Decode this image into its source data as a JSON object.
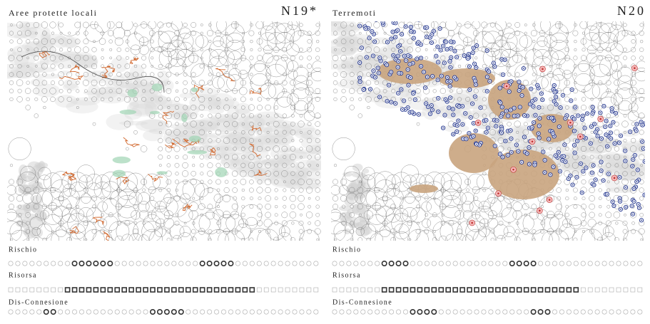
{
  "panels": [
    {
      "title": "Aree protette locali",
      "code": "N19*",
      "rows": [
        {
          "label": "Rischio"
        },
        {
          "label": "Risorsa"
        },
        {
          "label": "Dis-Connesione"
        }
      ]
    },
    {
      "title": "Terremoti",
      "code": "N20",
      "rows": [
        {
          "label": "Rischio"
        },
        {
          "label": "Risorsa"
        },
        {
          "label": "Dis-Connesione"
        }
      ]
    }
  ]
}
